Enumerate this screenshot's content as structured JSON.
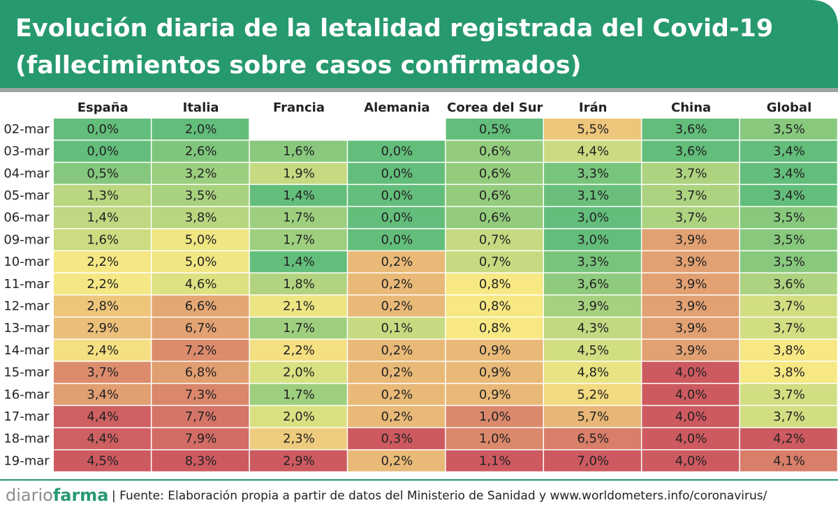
{
  "chart_data": {
    "type": "heatmap",
    "title": [
      "Evolución diaria de la letalidad registrada del Covid-19",
      "(fallecimientos sobre casos confirmados)"
    ],
    "categories": [
      "02-mar",
      "03-mar",
      "04-mar",
      "05-mar",
      "06-mar",
      "09-mar",
      "10-mar",
      "11-mar",
      "12-mar",
      "13-mar",
      "14-mar",
      "15-mar",
      "16-mar",
      "17-mar",
      "18-mar",
      "19-mar"
    ],
    "color_scale": [
      "#63be7b",
      "#f7e884",
      "#cd5a60"
    ],
    "series": [
      {
        "name": "España",
        "values": [
          0.0,
          0.0,
          0.5,
          1.3,
          1.4,
          1.6,
          2.2,
          2.2,
          2.8,
          2.9,
          2.4,
          3.7,
          3.4,
          4.4,
          4.4,
          4.5
        ],
        "value_labels": [
          "0,0%",
          "0,0%",
          "0,5%",
          "1,3%",
          "1,4%",
          "1,6%",
          "2,2%",
          "2,2%",
          "2,8%",
          "2,9%",
          "2,4%",
          "3,7%",
          "3,4%",
          "4,4%",
          "4,4%",
          "4,5%"
        ]
      },
      {
        "name": "Italia",
        "values": [
          2.0,
          2.6,
          3.2,
          3.5,
          3.8,
          5.0,
          5.0,
          4.6,
          6.6,
          6.7,
          7.2,
          6.8,
          7.3,
          7.7,
          7.9,
          8.3
        ],
        "value_labels": [
          "2,0%",
          "2,6%",
          "3,2%",
          "3,5%",
          "3,8%",
          "5,0%",
          "5,0%",
          "4,6%",
          "6,6%",
          "6,7%",
          "7,2%",
          "6,8%",
          "7,3%",
          "7,7%",
          "7,9%",
          "8,3%"
        ]
      },
      {
        "name": "Francia",
        "values": [
          null,
          1.6,
          1.9,
          1.4,
          1.7,
          1.7,
          1.4,
          1.8,
          2.1,
          1.7,
          2.2,
          2.0,
          1.7,
          2.0,
          2.3,
          2.9
        ],
        "value_labels": [
          null,
          "1,6%",
          "1,9%",
          "1,4%",
          "1,7%",
          "1,7%",
          "1,4%",
          "1,8%",
          "2,1%",
          "1,7%",
          "2,2%",
          "2,0%",
          "1,7%",
          "2,0%",
          "2,3%",
          "2,9%"
        ]
      },
      {
        "name": "Alemania",
        "values": [
          null,
          0.0,
          0.0,
          0.0,
          0.0,
          0.0,
          0.2,
          0.2,
          0.2,
          0.1,
          0.2,
          0.2,
          0.2,
          0.2,
          0.3,
          0.2
        ],
        "value_labels": [
          null,
          "0,0%",
          "0,0%",
          "0,0%",
          "0,0%",
          "0,0%",
          "0,2%",
          "0,2%",
          "0,2%",
          "0,1%",
          "0,2%",
          "0,2%",
          "0,2%",
          "0,2%",
          "0,3%",
          "0,2%"
        ]
      },
      {
        "name": "Corea del Sur",
        "values": [
          0.5,
          0.6,
          0.6,
          0.6,
          0.6,
          0.7,
          0.7,
          0.8,
          0.8,
          0.8,
          0.9,
          0.9,
          0.9,
          1.0,
          1.0,
          1.1
        ],
        "value_labels": [
          "0,5%",
          "0,6%",
          "0,6%",
          "0,6%",
          "0,6%",
          "0,7%",
          "0,7%",
          "0,8%",
          "0,8%",
          "0,8%",
          "0,9%",
          "0,9%",
          "0,9%",
          "1,0%",
          "1,0%",
          "1,1%"
        ]
      },
      {
        "name": "Irán",
        "values": [
          5.5,
          4.4,
          3.3,
          3.1,
          3.0,
          3.0,
          3.3,
          3.6,
          3.9,
          4.3,
          4.5,
          4.8,
          5.2,
          5.7,
          6.5,
          7.0
        ],
        "value_labels": [
          "5,5%",
          "4,4%",
          "3,3%",
          "3,1%",
          "3,0%",
          "3,0%",
          "3,3%",
          "3,6%",
          "3,9%",
          "4,3%",
          "4,5%",
          "4,8%",
          "5,2%",
          "5,7%",
          "6,5%",
          "7,0%"
        ]
      },
      {
        "name": "China",
        "values": [
          3.6,
          3.6,
          3.7,
          3.7,
          3.7,
          3.9,
          3.9,
          3.9,
          3.9,
          3.9,
          3.9,
          4.0,
          4.0,
          4.0,
          4.0,
          4.0
        ],
        "value_labels": [
          "3,6%",
          "3,6%",
          "3,7%",
          "3,7%",
          "3,7%",
          "3,9%",
          "3,9%",
          "3,9%",
          "3,9%",
          "3,9%",
          "3,9%",
          "4,0%",
          "4,0%",
          "4,0%",
          "4,0%",
          "4,0%"
        ]
      },
      {
        "name": "Global",
        "values": [
          3.5,
          3.4,
          3.4,
          3.4,
          3.5,
          3.5,
          3.5,
          3.6,
          3.7,
          3.7,
          3.8,
          3.8,
          3.7,
          3.7,
          4.2,
          4.1
        ],
        "value_labels": [
          "3,5%",
          "3,4%",
          "3,4%",
          "3,4%",
          "3,5%",
          "3,5%",
          "3,5%",
          "3,6%",
          "3,7%",
          "3,7%",
          "3,8%",
          "3,8%",
          "3,7%",
          "3,7%",
          "4,2%",
          "4,1%"
        ]
      }
    ],
    "logo": [
      "diario",
      "farma"
    ],
    "source": "| Fuente:  Elaboración propia a partir de datos del Ministerio de Sanidad y www.worldometers.info/coronavirus/"
  }
}
